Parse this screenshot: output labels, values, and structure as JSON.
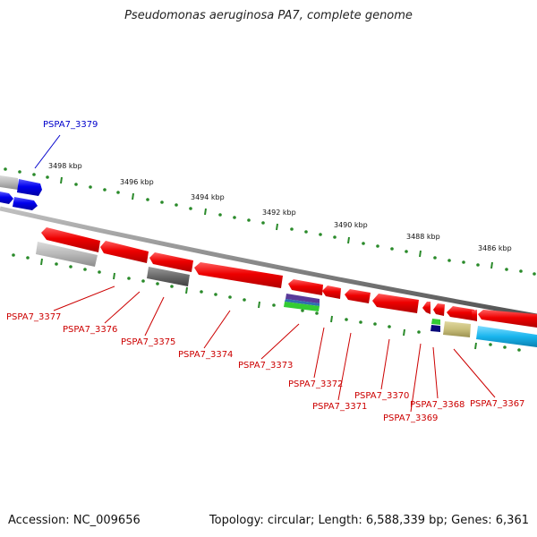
{
  "title": "Pseudomonas aeruginosa PA7, complete genome",
  "footer": {
    "accession": "Accession: NC_009656",
    "topology": "Topology: circular; Length: 6,588,339 bp; Genes: 6,361"
  },
  "ruler_labels": [
    "3498 kbp",
    "3496 kbp",
    "3494 kbp",
    "3492 kbp",
    "3490 kbp",
    "3488 kbp",
    "3486 kbp"
  ],
  "gene_labels": [
    {
      "text": "PSPA7_3379",
      "color": "#0000cc"
    },
    {
      "text": "PSPA7_3377",
      "color": "#cc0000"
    },
    {
      "text": "PSPA7_3376",
      "color": "#cc0000"
    },
    {
      "text": "PSPA7_3375",
      "color": "#cc0000"
    },
    {
      "text": "PSPA7_3374",
      "color": "#cc0000"
    },
    {
      "text": "PSPA7_3373",
      "color": "#cc0000"
    },
    {
      "text": "PSPA7_3372",
      "color": "#cc0000"
    },
    {
      "text": "PSPA7_3371",
      "color": "#cc0000"
    },
    {
      "text": "PSPA7_3370",
      "color": "#cc0000"
    },
    {
      "text": "PSPA7_3369",
      "color": "#cc0000"
    },
    {
      "text": "PSPA7_3368",
      "color": "#cc0000"
    },
    {
      "text": "PSPA7_3367",
      "color": "#cc0000"
    }
  ],
  "colors": {
    "backbone": "#8a8a8a",
    "tick": "#2a8a2a",
    "gene_red": "#ee0000",
    "gene_blue": "#0000ee",
    "gene_grey": "#b8b8b8",
    "gene_darkgrey": "#6a6a6a",
    "gene_cyan": "#19b5ee",
    "gene_khaki": "#c8be7a",
    "gene_green": "#33cc33",
    "gene_purple": "#5a3a9a",
    "gene_navy": "#0a0a7a"
  }
}
